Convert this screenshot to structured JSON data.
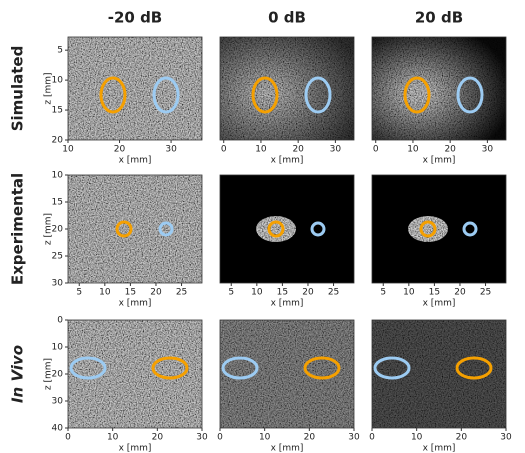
{
  "columns": [
    "-20 dB",
    "0 dB",
    "20 dB"
  ],
  "x_label": "x [mm]",
  "y_label": "z [mm]",
  "rows": [
    {
      "label": "Simulated",
      "ylim": [
        2.8,
        20
      ],
      "yticks": [
        5,
        10,
        15,
        20
      ],
      "panels": [
        {
          "xlim": [
            10,
            36
          ],
          "xticks": [
            10,
            20,
            30
          ]
        },
        {
          "xlim": [
            -1,
            35
          ],
          "xticks": [
            0,
            10,
            20,
            30
          ]
        },
        {
          "xlim": [
            -1,
            35
          ],
          "xticks": [
            0,
            10,
            20,
            30
          ]
        }
      ]
    },
    {
      "label": "Experimental",
      "ylim": [
        10,
        30
      ],
      "yticks": [
        10,
        15,
        20,
        25,
        30
      ],
      "panels": [
        {
          "xlim": [
            2.8,
            29
          ],
          "xticks": [
            5,
            10,
            15,
            20,
            25
          ]
        },
        {
          "xlim": [
            2.8,
            29
          ],
          "xticks": [
            5,
            10,
            15,
            20,
            25
          ]
        },
        {
          "xlim": [
            2.8,
            29
          ],
          "xticks": [
            5,
            10,
            15,
            20,
            25
          ]
        }
      ]
    },
    {
      "label": "In Vivo",
      "ylim": [
        0,
        40
      ],
      "yticks": [
        0,
        10,
        20,
        30,
        40
      ],
      "panels": [
        {
          "xlim": [
            0,
            30
          ],
          "xticks": [
            0,
            10,
            20,
            30
          ]
        },
        {
          "xlim": [
            0,
            30
          ],
          "xticks": [
            0,
            10,
            20,
            30
          ]
        },
        {
          "xlim": [
            0,
            30
          ],
          "xticks": [
            0,
            10,
            20,
            30
          ]
        }
      ]
    }
  ]
}
